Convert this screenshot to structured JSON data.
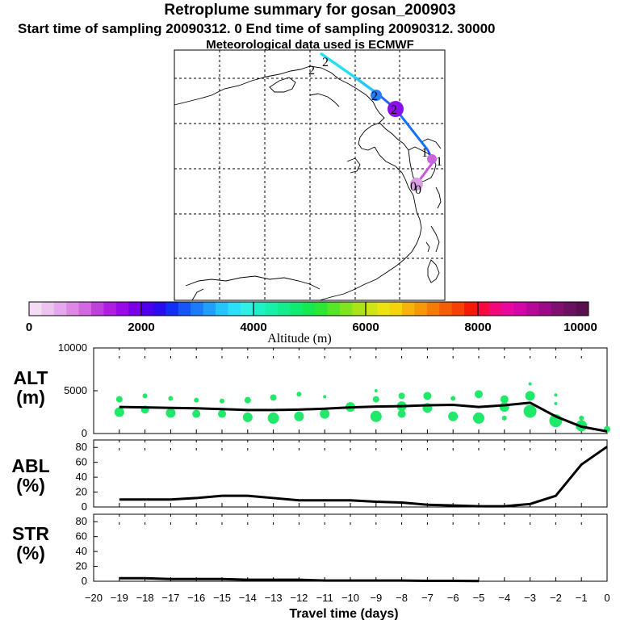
{
  "header": {
    "title": "Retroplume summary for gosan_200903",
    "subtitle": "Start time of sampling 20090312.    0     End time of sampling 20090312. 30000",
    "meteo": "Meteorological data used is ECMWF"
  },
  "colorbar": {
    "label": "Altitude (m)",
    "tick_labels": [
      "0",
      "2000",
      "4000",
      "6000",
      "8000",
      "10000"
    ],
    "colors": [
      "#f4dcf4",
      "#edc3f0",
      "#e6a8ec",
      "#de88e6",
      "#d268e2",
      "#c040de",
      "#b01ee4",
      "#9a0ae8",
      "#7a00ec",
      "#4e00ee",
      "#2a0cf0",
      "#1030f4",
      "#1456f8",
      "#1a7cfa",
      "#20a0fc",
      "#26c4fc",
      "#2ae0f8",
      "#2ef0e6",
      "#20f0c8",
      "#18f0aa",
      "#12ee8e",
      "#10ec70",
      "#14ea50",
      "#2ce834",
      "#56e628",
      "#80e41e",
      "#aae418",
      "#cfe414",
      "#ece410",
      "#f4d40c",
      "#f6b40a",
      "#f69808",
      "#f67a06",
      "#f65e06",
      "#f64004",
      "#f61a04",
      "#f60a40",
      "#f2087a",
      "#e808a0",
      "#d406a6",
      "#b80898",
      "#9c0a88",
      "#801070",
      "#6a1260",
      "#5a1050"
    ]
  },
  "map": {
    "trajectory_labels": [
      "2",
      "2",
      "2",
      "2",
      "1",
      "1",
      "0",
      "0"
    ]
  },
  "chart_data": [
    {
      "type": "line",
      "panel_label": "ALT\n(m)",
      "panel_label_lines": [
        "ALT",
        "(m)"
      ],
      "ylabel": "Altitude (m)",
      "ylim": [
        0,
        10000
      ],
      "y_ticks": [
        0,
        5000,
        10000
      ],
      "x": [
        -19,
        -18,
        -17,
        -16,
        -15,
        -14,
        -13,
        -12,
        -11,
        -10,
        -9,
        -8,
        -7,
        -6,
        -5,
        -4,
        -3,
        -2,
        -1,
        0
      ],
      "series": [
        {
          "name": "median altitude",
          "color": "#000000",
          "values": [
            3100,
            3050,
            3000,
            2950,
            2850,
            2750,
            2750,
            2800,
            2900,
            3050,
            3150,
            3200,
            3300,
            3350,
            3100,
            3300,
            3600,
            2000,
            800,
            250
          ]
        }
      ],
      "clusters": {
        "color": "#20e868",
        "points": [
          {
            "x": -19,
            "y": 4000,
            "r": 4
          },
          {
            "x": -19,
            "y": 2500,
            "r": 6
          },
          {
            "x": -18,
            "y": 4400,
            "r": 3
          },
          {
            "x": -18,
            "y": 2800,
            "r": 5
          },
          {
            "x": -17,
            "y": 4100,
            "r": 3
          },
          {
            "x": -17,
            "y": 2400,
            "r": 6
          },
          {
            "x": -16,
            "y": 3900,
            "r": 3
          },
          {
            "x": -16,
            "y": 2300,
            "r": 5
          },
          {
            "x": -15,
            "y": 3800,
            "r": 3
          },
          {
            "x": -15,
            "y": 2300,
            "r": 5
          },
          {
            "x": -14,
            "y": 3900,
            "r": 4
          },
          {
            "x": -14,
            "y": 1900,
            "r": 6
          },
          {
            "x": -13,
            "y": 4200,
            "r": 4
          },
          {
            "x": -13,
            "y": 1800,
            "r": 7
          },
          {
            "x": -12,
            "y": 4600,
            "r": 3
          },
          {
            "x": -12,
            "y": 2000,
            "r": 6
          },
          {
            "x": -11,
            "y": 4300,
            "r": 2
          },
          {
            "x": -11,
            "y": 2300,
            "r": 6
          },
          {
            "x": -10,
            "y": 3100,
            "r": 6
          },
          {
            "x": -9,
            "y": 5000,
            "r": 2
          },
          {
            "x": -9,
            "y": 4000,
            "r": 4
          },
          {
            "x": -9,
            "y": 2000,
            "r": 7
          },
          {
            "x": -8,
            "y": 4400,
            "r": 4
          },
          {
            "x": -8,
            "y": 3200,
            "r": 6
          },
          {
            "x": -8,
            "y": 2300,
            "r": 5
          },
          {
            "x": -7,
            "y": 4400,
            "r": 5
          },
          {
            "x": -7,
            "y": 3000,
            "r": 6
          },
          {
            "x": -6,
            "y": 4100,
            "r": 3
          },
          {
            "x": -6,
            "y": 2000,
            "r": 6
          },
          {
            "x": -5,
            "y": 4600,
            "r": 5
          },
          {
            "x": -5,
            "y": 1800,
            "r": 7
          },
          {
            "x": -4,
            "y": 4000,
            "r": 5
          },
          {
            "x": -4,
            "y": 3100,
            "r": 6
          },
          {
            "x": -4,
            "y": 1800,
            "r": 3
          },
          {
            "x": -3,
            "y": 5800,
            "r": 2
          },
          {
            "x": -3,
            "y": 4400,
            "r": 6
          },
          {
            "x": -3,
            "y": 2600,
            "r": 8
          },
          {
            "x": -2,
            "y": 4500,
            "r": 2
          },
          {
            "x": -2,
            "y": 3500,
            "r": 2
          },
          {
            "x": -2,
            "y": 1500,
            "r": 8
          },
          {
            "x": -1,
            "y": 1800,
            "r": 3
          },
          {
            "x": -1,
            "y": 900,
            "r": 7
          },
          {
            "x": 0,
            "y": 500,
            "r": 4
          }
        ]
      },
      "x_range": [
        -20,
        0
      ]
    },
    {
      "type": "line",
      "panel_label": "ABL\n(%)",
      "panel_label_lines": [
        "ABL",
        "(%)"
      ],
      "ylabel": "ABL (%)",
      "ylim": [
        0,
        90
      ],
      "y_ticks": [
        0,
        20,
        40,
        60,
        80
      ],
      "x": [
        -19,
        -18,
        -17,
        -16,
        -15,
        -14,
        -13,
        -12,
        -11,
        -10,
        -9,
        -8,
        -7,
        -6,
        -5,
        -4,
        -3,
        -2,
        -1,
        0
      ],
      "series": [
        {
          "name": "ABL fraction",
          "color": "#000000",
          "values": [
            10,
            10,
            10,
            12,
            15,
            15,
            12,
            9,
            9,
            9,
            7,
            6,
            3,
            2,
            1,
            1,
            4,
            15,
            57,
            81
          ]
        }
      ],
      "x_range": [
        -20,
        0
      ]
    },
    {
      "type": "line",
      "panel_label": "STR\n(%)",
      "panel_label_lines": [
        "STR",
        "(%)"
      ],
      "ylabel": "STR (%)",
      "ylim": [
        0,
        90
      ],
      "y_ticks": [
        0,
        20,
        40,
        60,
        80
      ],
      "x": [
        -19,
        -18,
        -17,
        -16,
        -15,
        -14,
        -13,
        -12,
        -11,
        -10,
        -9,
        -8,
        -7,
        -6,
        -5
      ],
      "series": [
        {
          "name": "stratospheric fraction",
          "color": "#000000",
          "values": [
            4,
            4,
            3,
            3,
            3,
            2,
            2,
            2,
            1,
            1,
            1,
            1,
            0.5,
            0.5,
            0.3
          ]
        }
      ],
      "x_range": [
        -20,
        0
      ],
      "x_tick_labels": [
        "−20",
        "−19",
        "−18",
        "−17",
        "−16",
        "−15",
        "−14",
        "−13",
        "−12",
        "−11",
        "−10",
        "−9",
        "−8",
        "−7",
        "−6",
        "−5",
        "−4",
        "−3",
        "−2",
        "−1",
        "0"
      ],
      "xlabel": "Travel time (days)"
    }
  ]
}
